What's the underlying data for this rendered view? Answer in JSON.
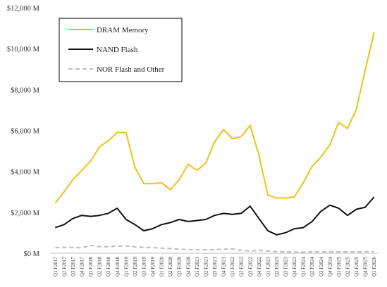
{
  "chart_data": {
    "type": "line",
    "title": "",
    "xlabel": "",
    "ylabel": "",
    "ylim": [
      0,
      12000
    ],
    "y_ticks": [
      {
        "value": 0,
        "label": "$0 M"
      },
      {
        "value": 2000,
        "label": "$2,000 M"
      },
      {
        "value": 4000,
        "label": "$4,000 M"
      },
      {
        "value": 6000,
        "label": "$6,000 M"
      },
      {
        "value": 8000,
        "label": "$8,000 M"
      },
      {
        "value": 10000,
        "label": "$10,000 M"
      },
      {
        "value": 12000,
        "label": "$12,000 M"
      }
    ],
    "grid": false,
    "legend_position": "top-left",
    "categories": [
      "Q1 F2017",
      "Q2 F2017",
      "Q3 F2017",
      "Q4 F2017",
      "Q1 F2018",
      "Q2 F2018",
      "Q3 F2018",
      "Q4 F2018",
      "Q1 F2019",
      "Q2 F2019",
      "Q3 F2019",
      "Q4 F2019",
      "Q1 F2020",
      "Q2 F2020",
      "Q3 F2020",
      "Q4 F2020",
      "Q1 F2021",
      "Q2 F2021",
      "Q3 F2021",
      "Q4 F2021",
      "Q1 F2022",
      "Q2 F2022",
      "Q3 F2022",
      "Q4 F2022",
      "Q1 F2023",
      "Q2 F2023",
      "Q3 F2023",
      "Q4 F2023",
      "Q1 F2024",
      "Q2 F2024",
      "Q3 F2024",
      "Q4 F2024",
      "Q1 F2025",
      "Q2 F2025",
      "Q3 F2025",
      "Q4 F2025",
      "Q1 F2026"
    ],
    "series": [
      {
        "name": "DRAM Memory",
        "color": "#F2C018",
        "dash": "solid",
        "values": [
          2450,
          3000,
          3600,
          4050,
          4500,
          5200,
          5500,
          5900,
          5900,
          4200,
          3400,
          3400,
          3450,
          3100,
          3600,
          4350,
          4050,
          4400,
          5450,
          6050,
          5600,
          5700,
          6250,
          4800,
          2850,
          2700,
          2700,
          2750,
          3450,
          4250,
          4700,
          5300,
          6400,
          6100,
          7050,
          8950,
          10800
        ]
      },
      {
        "name": "NAND Flash",
        "color": "#111111",
        "dash": "solid",
        "values": [
          1250,
          1400,
          1700,
          1850,
          1800,
          1850,
          1950,
          2200,
          1650,
          1400,
          1100,
          1200,
          1400,
          1500,
          1650,
          1550,
          1600,
          1650,
          1850,
          1950,
          1900,
          1950,
          2300,
          1700,
          1100,
          900,
          1000,
          1200,
          1250,
          1550,
          2050,
          2350,
          2200,
          1850,
          2150,
          2250,
          2750
        ]
      },
      {
        "name": "NOR Flash and Other",
        "color": "#BDBDBD",
        "dash": "dashed",
        "values": [
          280,
          290,
          290,
          260,
          380,
          320,
          320,
          350,
          350,
          310,
          290,
          270,
          250,
          220,
          200,
          180,
          170,
          170,
          180,
          200,
          210,
          140,
          100,
          140,
          110,
          80,
          70,
          60,
          50,
          70,
          70,
          70,
          70,
          70,
          70,
          80,
          80
        ]
      }
    ]
  }
}
